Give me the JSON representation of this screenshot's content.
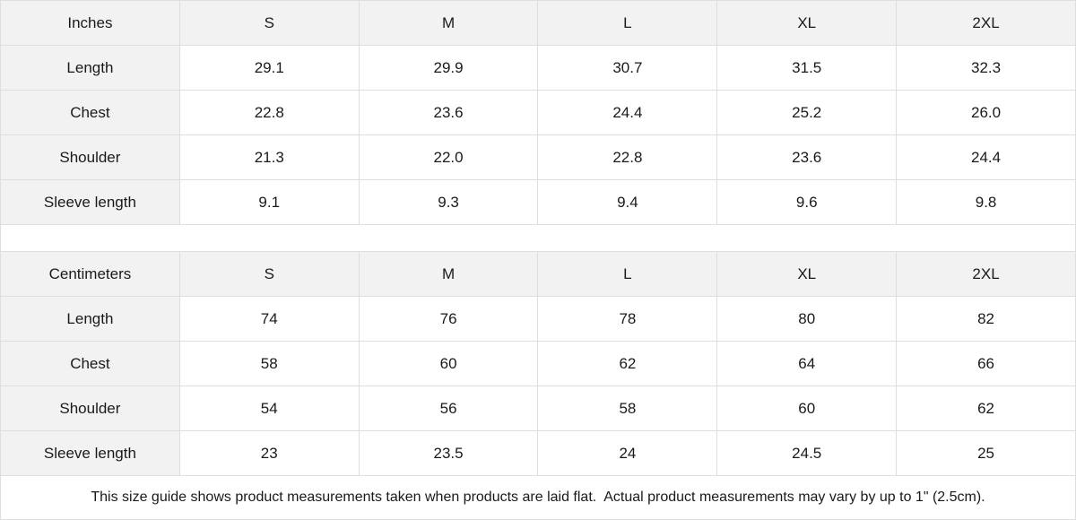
{
  "colors": {
    "header_bg": "#f2f2f2",
    "border": "#dedede",
    "text": "#1a1a1a"
  },
  "tables": [
    {
      "header": [
        "Inches",
        "S",
        "M",
        "L",
        "XL",
        "2XL"
      ],
      "rows": [
        [
          "Length",
          "29.1",
          "29.9",
          "30.7",
          "31.5",
          "32.3"
        ],
        [
          "Chest",
          "22.8",
          "23.6",
          "24.4",
          "25.2",
          "26.0"
        ],
        [
          "Shoulder",
          "21.3",
          "22.0",
          "22.8",
          "23.6",
          "24.4"
        ],
        [
          "Sleeve length",
          "9.1",
          "9.3",
          "9.4",
          "9.6",
          "9.8"
        ]
      ]
    },
    {
      "header": [
        "Centimeters",
        "S",
        "M",
        "L",
        "XL",
        "2XL"
      ],
      "rows": [
        [
          "Length",
          "74",
          "76",
          "78",
          "80",
          "82"
        ],
        [
          "Chest",
          "58",
          "60",
          "62",
          "64",
          "66"
        ],
        [
          "Shoulder",
          "54",
          "56",
          "58",
          "60",
          "62"
        ],
        [
          "Sleeve length",
          "23",
          "23.5",
          "24",
          "24.5",
          "25"
        ]
      ]
    }
  ],
  "note": "This size guide shows product measurements taken when products are laid flat.  Actual product measurements may vary by up to 1\" (2.5cm)."
}
